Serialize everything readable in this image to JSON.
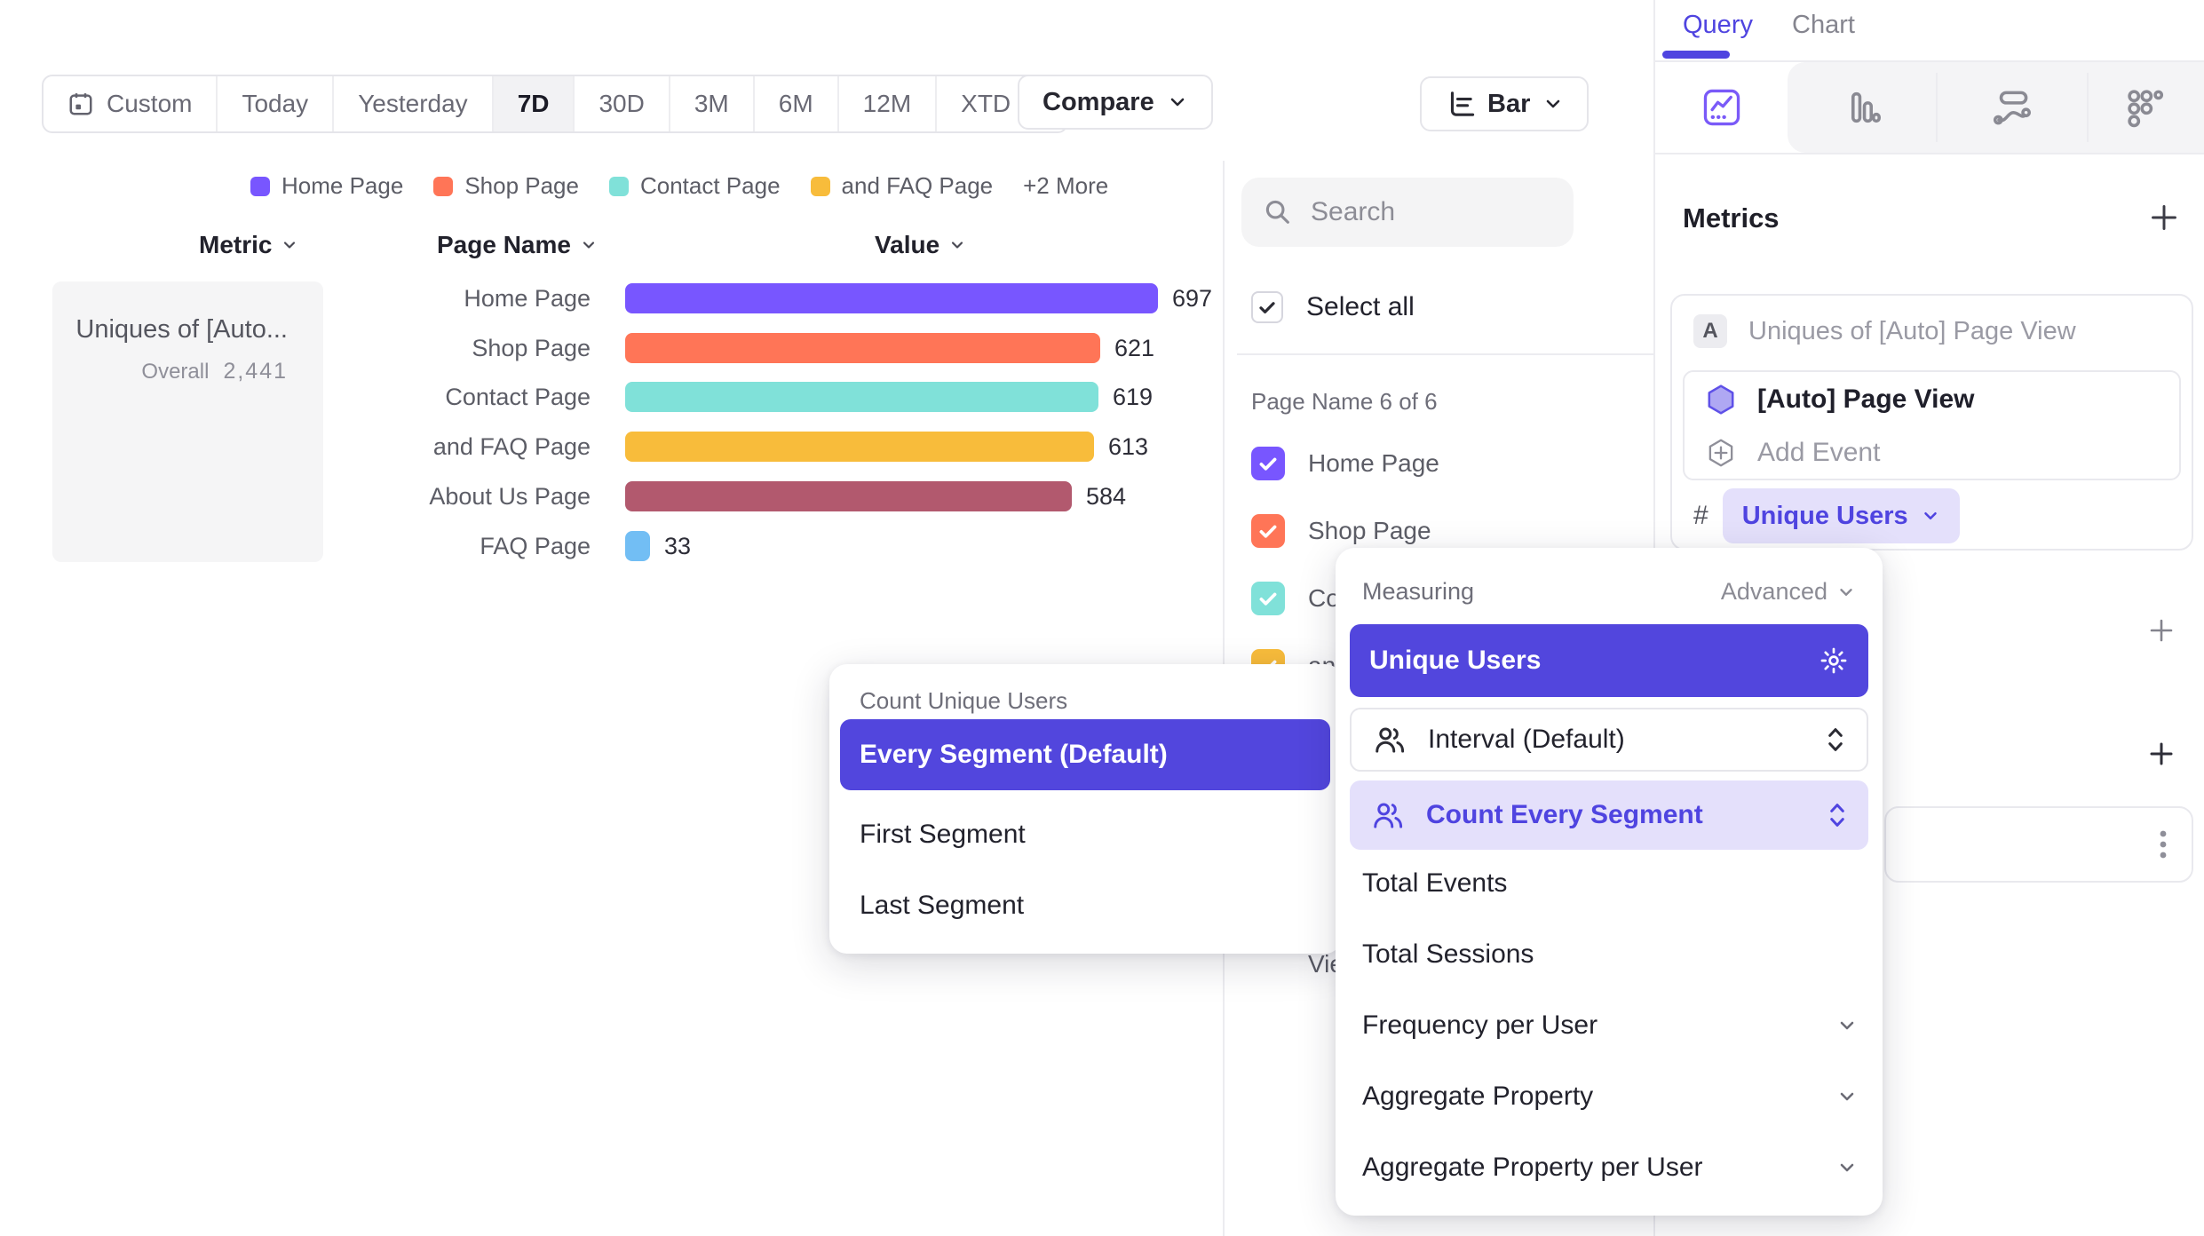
{
  "colors": {
    "accent": "#4F44E0",
    "selected_row": "#5246DD",
    "pill_bg": "#e4e0fb",
    "icon_gray": "#8a8a93"
  },
  "toolbar": {
    "date_ranges": [
      "Custom",
      "Today",
      "Yesterday",
      "7D",
      "30D",
      "3M",
      "6M",
      "12M",
      "XTD"
    ],
    "active_range": "7D",
    "compare_label": "Compare",
    "chart_type_label": "Bar"
  },
  "chart_data": {
    "type": "bar",
    "orientation": "horizontal",
    "columns": [
      "Metric",
      "Page Name",
      "Value"
    ],
    "categories": [
      "Home Page",
      "Shop Page",
      "Contact Page",
      "and FAQ Page",
      "About Us Page",
      "FAQ Page"
    ],
    "values": [
      697,
      621,
      619,
      613,
      584,
      33
    ],
    "colors": [
      "#7856FF",
      "#FF7557",
      "#80E1D9",
      "#F8BC3B",
      "#B2596E",
      "#72BEF4"
    ],
    "legend": [
      "Home Page",
      "Shop Page",
      "Contact Page",
      "and FAQ Page"
    ],
    "legend_more": "+2 More",
    "metric_label": "Uniques of [Auto...",
    "overall_label": "Overall",
    "overall_value": "2,441",
    "xlim": [
      0,
      697
    ],
    "grid": false,
    "legend_position": "top"
  },
  "segment_panel": {
    "search_placeholder": "Search",
    "select_all_label": "Select all",
    "section_label": "Page Name 6 of 6",
    "items": [
      {
        "label": "Home Page",
        "color": "#7856FF"
      },
      {
        "label": "Shop Page",
        "color": "#FF7557"
      },
      {
        "label": "Contact Page",
        "color": "#80E1D9"
      },
      {
        "label": "and FAQ Page",
        "color": "#F8BC3B"
      },
      {
        "label": "Uniques of [Auto] Page View",
        "color": "#4F44E0"
      }
    ]
  },
  "query_panel": {
    "tab_query": "Query",
    "tab_chart": "Chart",
    "metrics_heading": "Metrics",
    "metric_badge": "A",
    "metric_label": "Uniques of [Auto] Page View",
    "event_label": "[Auto] Page View",
    "add_event_label": "Add Event",
    "hash_symbol": "#",
    "measurement_pill": "Unique Users"
  },
  "measuring_popover": {
    "title": "Measuring",
    "advanced_label": "Advanced",
    "selected_option": "Unique Users",
    "interval_option": "Interval (Default)",
    "count_option": "Count Every Segment",
    "plain_options": [
      "Total Events",
      "Total Sessions"
    ],
    "expandable_options": [
      "Frequency per User",
      "Aggregate Property",
      "Aggregate Property per User"
    ]
  },
  "count_popover": {
    "title": "Count Unique Users",
    "selected_option": "Every Segment (Default)",
    "options": [
      "First Segment",
      "Last Segment"
    ]
  }
}
